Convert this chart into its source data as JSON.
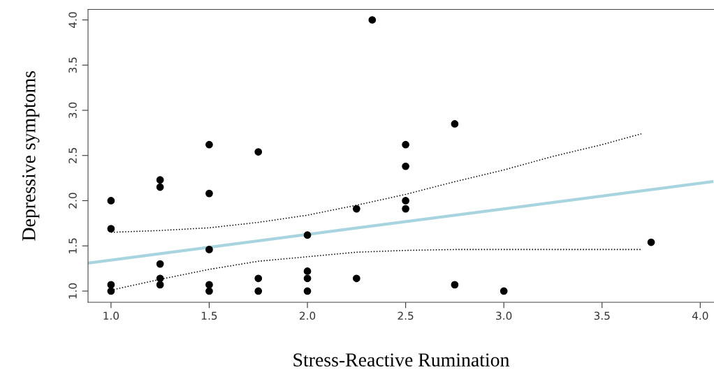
{
  "chart_data": {
    "type": "scatter",
    "xlabel": "Stress-Reactive Rumination",
    "ylabel": "Depressive symptoms",
    "xlim": [
      0.883,
      4.07
    ],
    "ylim": [
      0.876,
      4.116
    ],
    "xticks": [
      {
        "value": 1,
        "label": "1.0"
      },
      1.5,
      {
        "value": 2,
        "label": "2.0"
      },
      2.5,
      {
        "value": 3,
        "label": "3.0"
      },
      3.5,
      {
        "value": 4,
        "label": "4.0"
      }
    ],
    "yticks": [
      {
        "value": 1,
        "label": "1.0"
      },
      1.5,
      {
        "value": 2,
        "label": "2.0"
      },
      2.5,
      {
        "value": 3,
        "label": "3.0"
      },
      3.5,
      {
        "value": 4,
        "label": "4.0"
      }
    ],
    "grid": false,
    "series": [
      {
        "marker": "circle",
        "color": "#000000",
        "x": [
          1.0,
          1.0,
          1.0,
          1.0,
          1.25,
          1.25,
          1.25,
          1.25,
          1.25,
          1.5,
          1.5,
          1.5,
          1.5,
          1.5,
          1.75,
          1.75,
          1.75,
          2.0,
          2.0,
          2.0,
          2.0,
          2.25,
          2.25,
          2.33,
          2.5,
          2.5,
          2.5,
          2.5,
          2.75,
          2.75,
          3.0,
          3.75
        ],
        "values": [
          1.0,
          1.07,
          1.69,
          2.0,
          1.07,
          1.14,
          1.3,
          2.15,
          2.23,
          1.0,
          1.07,
          1.46,
          2.08,
          2.62,
          1.0,
          1.14,
          2.54,
          1.0,
          1.14,
          1.22,
          1.62,
          1.14,
          1.91,
          4.0,
          1.91,
          2.0,
          2.38,
          2.62,
          1.07,
          2.85,
          1.0,
          1.54
        ]
      },
      {
        "type": "line",
        "color": "#a8d4e0",
        "line_style": "solid",
        "marker": "none",
        "x": [
          0.883,
          4.06
        ],
        "values": [
          1.31,
          2.21
        ]
      },
      {
        "type": "line",
        "color": "#000000",
        "line_style": "dotted",
        "marker": "none",
        "x": [
          1.0,
          1.25,
          1.5,
          1.75,
          2.0,
          2.25,
          2.5,
          2.75,
          3.0,
          3.25,
          3.5,
          3.7
        ],
        "values": [
          1.65,
          1.67,
          1.7,
          1.76,
          1.84,
          1.95,
          2.07,
          2.21,
          2.34,
          2.49,
          2.62,
          2.74
        ]
      },
      {
        "type": "line",
        "color": "#000000",
        "line_style": "dotted",
        "marker": "none",
        "x": [
          1.0,
          1.25,
          1.5,
          1.75,
          2.0,
          2.25,
          2.5,
          2.75,
          3.0,
          3.25,
          3.5,
          3.7
        ],
        "values": [
          1.01,
          1.13,
          1.24,
          1.33,
          1.38,
          1.43,
          1.45,
          1.46,
          1.46,
          1.46,
          1.46,
          1.46
        ]
      }
    ]
  }
}
